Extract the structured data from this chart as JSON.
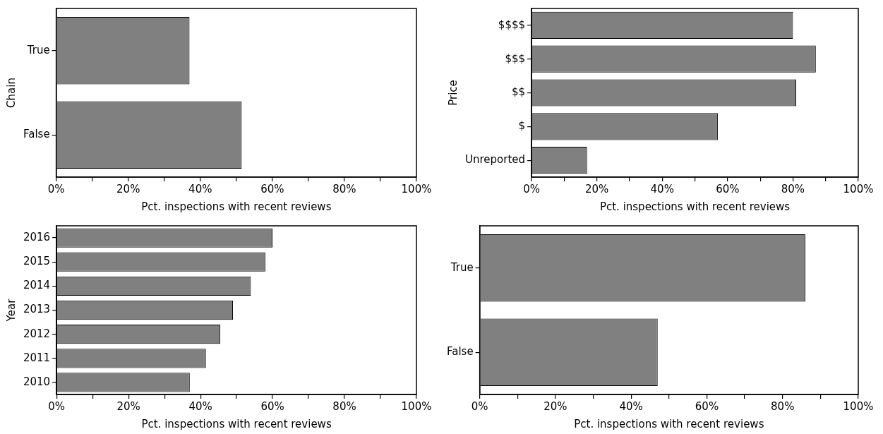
{
  "chart_data": [
    {
      "type": "bar",
      "orientation": "horizontal",
      "categories": [
        "True",
        "False"
      ],
      "values": [
        37,
        51.5
      ],
      "color": "#808080",
      "xlabel": "Pct. inspections with recent reviews",
      "ylabel": "Chain",
      "xlim": [
        0,
        100
      ],
      "xticks": [
        {
          "value": 0,
          "label": "0%"
        },
        {
          "value": 10,
          "label": null
        },
        {
          "value": 20,
          "label": "20%"
        },
        {
          "value": 30,
          "label": null
        },
        {
          "value": 40,
          "label": "40%"
        },
        {
          "value": 50,
          "label": null
        },
        {
          "value": 60,
          "label": "60%"
        },
        {
          "value": 70,
          "label": null
        },
        {
          "value": 80,
          "label": "80%"
        },
        {
          "value": 90,
          "label": null
        },
        {
          "value": 100,
          "label": "100%"
        }
      ],
      "grid": false,
      "legend": false
    },
    {
      "type": "bar",
      "orientation": "horizontal",
      "categories": [
        "$$$$",
        "$$$",
        "$$",
        "$",
        "Unreported"
      ],
      "values": [
        80,
        87,
        81,
        57,
        17
      ],
      "color": "#808080",
      "xlabel": "Pct. inspections with recent reviews",
      "ylabel": "Price",
      "xlim": [
        0,
        100
      ],
      "xticks": [
        {
          "value": 0,
          "label": "0%"
        },
        {
          "value": 10,
          "label": null
        },
        {
          "value": 20,
          "label": "20%"
        },
        {
          "value": 30,
          "label": null
        },
        {
          "value": 40,
          "label": "40%"
        },
        {
          "value": 50,
          "label": null
        },
        {
          "value": 60,
          "label": "60%"
        },
        {
          "value": 70,
          "label": null
        },
        {
          "value": 80,
          "label": "80%"
        },
        {
          "value": 90,
          "label": null
        },
        {
          "value": 100,
          "label": "100%"
        }
      ],
      "grid": false,
      "legend": false
    },
    {
      "type": "bar",
      "orientation": "horizontal",
      "categories": [
        "2016",
        "2015",
        "2014",
        "2013",
        "2012",
        "2011",
        "2010"
      ],
      "values": [
        60,
        58,
        54,
        49,
        45.5,
        41.5,
        37
      ],
      "color": "#808080",
      "xlabel": "Pct. inspections with recent reviews",
      "ylabel": "Year",
      "xlim": [
        0,
        100
      ],
      "xticks": [
        {
          "value": 0,
          "label": "0%"
        },
        {
          "value": 10,
          "label": null
        },
        {
          "value": 20,
          "label": "20%"
        },
        {
          "value": 30,
          "label": null
        },
        {
          "value": 40,
          "label": "40%"
        },
        {
          "value": 50,
          "label": null
        },
        {
          "value": 60,
          "label": "60%"
        },
        {
          "value": 70,
          "label": null
        },
        {
          "value": 80,
          "label": "80%"
        },
        {
          "value": 90,
          "label": null
        },
        {
          "value": 100,
          "label": "100%"
        }
      ],
      "grid": false,
      "legend": false
    },
    {
      "type": "bar",
      "orientation": "horizontal",
      "categories": [
        "True",
        "False"
      ],
      "values": [
        86,
        47
      ],
      "color": "#808080",
      "xlabel": "Pct. inspections with recent reviews",
      "xlim": [
        0,
        100
      ],
      "xticks": [
        {
          "value": 0,
          "label": "0%"
        },
        {
          "value": 10,
          "label": null
        },
        {
          "value": 20,
          "label": "20%"
        },
        {
          "value": 30,
          "label": null
        },
        {
          "value": 40,
          "label": "40%"
        },
        {
          "value": 50,
          "label": null
        },
        {
          "value": 60,
          "label": "60%"
        },
        {
          "value": 70,
          "label": null
        },
        {
          "value": 80,
          "label": "80%"
        },
        {
          "value": 90,
          "label": null
        },
        {
          "value": 100,
          "label": "100%"
        }
      ],
      "grid": false,
      "legend": false
    }
  ]
}
